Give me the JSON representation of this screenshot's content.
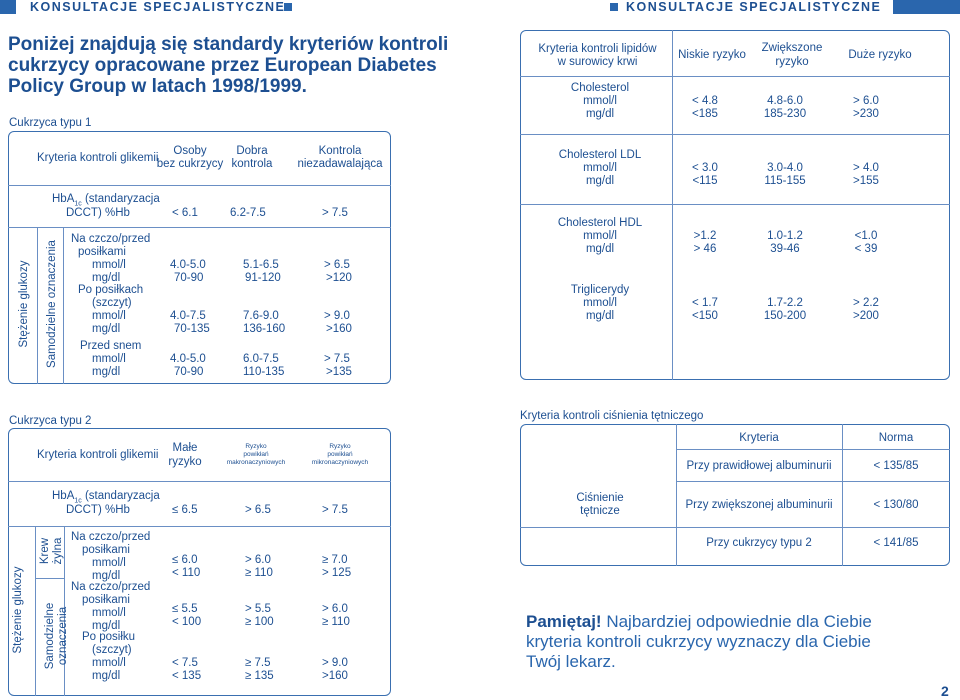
{
  "header": {
    "left": "KONSULTACJE SPECJALISTYCZNE",
    "right": "KONSULTACJE SPECJALISTYCZNE"
  },
  "intro": {
    "line1": "Poniżej znajdują się standardy kryteriów kontroli",
    "line2": "cukrzycy opracowane przez European Diabetes",
    "line3": "Policy Group w latach 1998/1999."
  },
  "type1": {
    "title": "Cukrzyca typu 1",
    "head": [
      "Kryteria kontroli glikemii",
      "Osoby",
      "bez cukrzycy",
      "Dobra",
      "kontrola",
      "Kontrola",
      "niezadawalająca"
    ],
    "hba1c": {
      "label1": "HbA",
      "sub": "1c",
      "label2": " (standaryzacja",
      "label3": "DCCT) %Hb",
      "values": [
        "< 6.1",
        "6.2-7.5",
        "> 7.5"
      ]
    },
    "side_outer": "Stężenie glukozy",
    "side_inner": "Samodzielne oznaczenia",
    "rows": [
      {
        "l1": "Na czczo/przed",
        "l2": "posiłkami",
        "l3": "mmol/l",
        "l4": "mg/dl",
        "m": [
          "4.0-5.0",
          "5.1-6.5",
          "> 6.5"
        ],
        "g": [
          "70-90",
          "91-120",
          ">120"
        ]
      },
      {
        "l1": "Po posiłkach",
        "l2": "(szczyt)",
        "l3": "mmol/l",
        "l4": "mg/dl",
        "m": [
          "4.0-7.5",
          "7.6-9.0",
          "> 9.0"
        ],
        "g": [
          "70-135",
          "136-160",
          ">160"
        ]
      },
      {
        "l1": "Przed snem",
        "l2": "",
        "l3": "mmol/l",
        "l4": "mg/dl",
        "m": [
          "4.0-5.0",
          "6.0-7.5",
          "> 7.5"
        ],
        "g": [
          "70-90",
          "110-135",
          ">135"
        ]
      }
    ]
  },
  "lipids": {
    "head": [
      "Kryteria kontroli lipidów",
      "w surowicy krwi",
      "Niskie ryzyko",
      "Zwiększone",
      "ryzyko",
      "Duże ryzyko"
    ],
    "rows": [
      {
        "name": "Cholesterol",
        "m": [
          "< 4.8",
          "4.8-6.0",
          "> 6.0"
        ],
        "g": [
          "<185",
          "185-230",
          ">230"
        ]
      },
      {
        "name": "Cholesterol LDL",
        "m": [
          "< 3.0",
          "3.0-4.0",
          "> 4.0"
        ],
        "g": [
          "<115",
          "115-155",
          ">155"
        ]
      },
      {
        "name": "Cholesterol HDL",
        "m": [
          ">1.2",
          "1.0-1.2",
          "<1.0"
        ],
        "g": [
          "> 46",
          "39-46",
          "< 39"
        ]
      },
      {
        "name": "Triglicerydy",
        "m": [
          "< 1.7",
          "1.7-2.2",
          "> 2.2"
        ],
        "g": [
          "<150",
          "150-200",
          ">200"
        ]
      }
    ],
    "unit_m": "mmol/l",
    "unit_g": "mg/dl"
  },
  "type2": {
    "title": "Cukrzyca typu 2",
    "head": {
      "criteria": "Kryteria kontroli glikemii",
      "low1": "Małe",
      "low2": "ryzyko",
      "macro1": "Ryzyko",
      "macro2": "powikłań",
      "macro3": "makronaczyniowych",
      "micro1": "Ryzyko",
      "micro2": "powikłań",
      "micro3": "mikronaczyniowych"
    },
    "hba1c": {
      "label1": "HbA",
      "sub": "1c",
      "label2": " (standaryzacja",
      "label3": "DCCT) %Hb",
      "values": [
        "≤ 6.5",
        "> 6.5",
        "> 7.5"
      ]
    },
    "side_outer": "Stężenie glukozy",
    "side_venous1": "Krew",
    "side_venous2": "żylna",
    "side_self1": "Samodzielne",
    "side_self2": "oznaczenia",
    "rows": [
      {
        "l1": "Na czczo/przed",
        "l2": "posiłkami",
        "l3": "mmol/l",
        "l4": "mg/dl",
        "m": [
          "≤ 6.0",
          "> 6.0",
          "≥ 7.0"
        ],
        "g": [
          "< 110",
          "≥ 110",
          "> 125"
        ]
      },
      {
        "l1": "Na czczo/przed",
        "l2": "posiłkami",
        "l3": "mmol/l",
        "l4": "mg/dl",
        "m": [
          "≤ 5.5",
          "> 5.5",
          "> 6.0"
        ],
        "g": [
          "< 100",
          "≥ 100",
          "≥ 110"
        ]
      },
      {
        "l1": "Po posiłku",
        "l2": "(szczyt)",
        "l3": "mmol/l",
        "l4": "mg/dl",
        "m": [
          "< 7.5",
          "≥ 7.5",
          "> 9.0"
        ],
        "g": [
          "< 135",
          "≥ 135",
          ">160"
        ]
      }
    ]
  },
  "bp": {
    "title": "Kryteria kontroli ciśnienia tętniczego",
    "head": {
      "criteria": "Kryteria",
      "norm": "Norma"
    },
    "side1": "Ciśnienie",
    "side2": "tętnicze",
    "rows": [
      {
        "label": "Przy prawidłowej albuminurii",
        "value": "< 135/85"
      },
      {
        "label": "Przy zwiększonej albuminurii",
        "value": "< 130/80"
      },
      {
        "label": "Przy cukrzycy typu 2",
        "value": "< 141/85"
      }
    ]
  },
  "remember": {
    "bold": "Pamiętaj!",
    "text1": " Najbardziej odpowiednie dla Ciebie",
    "text2": "kryteria kontroli cukrzycy wyznaczy dla Ciebie",
    "text3": "Twój lekarz."
  },
  "page_number": "2"
}
